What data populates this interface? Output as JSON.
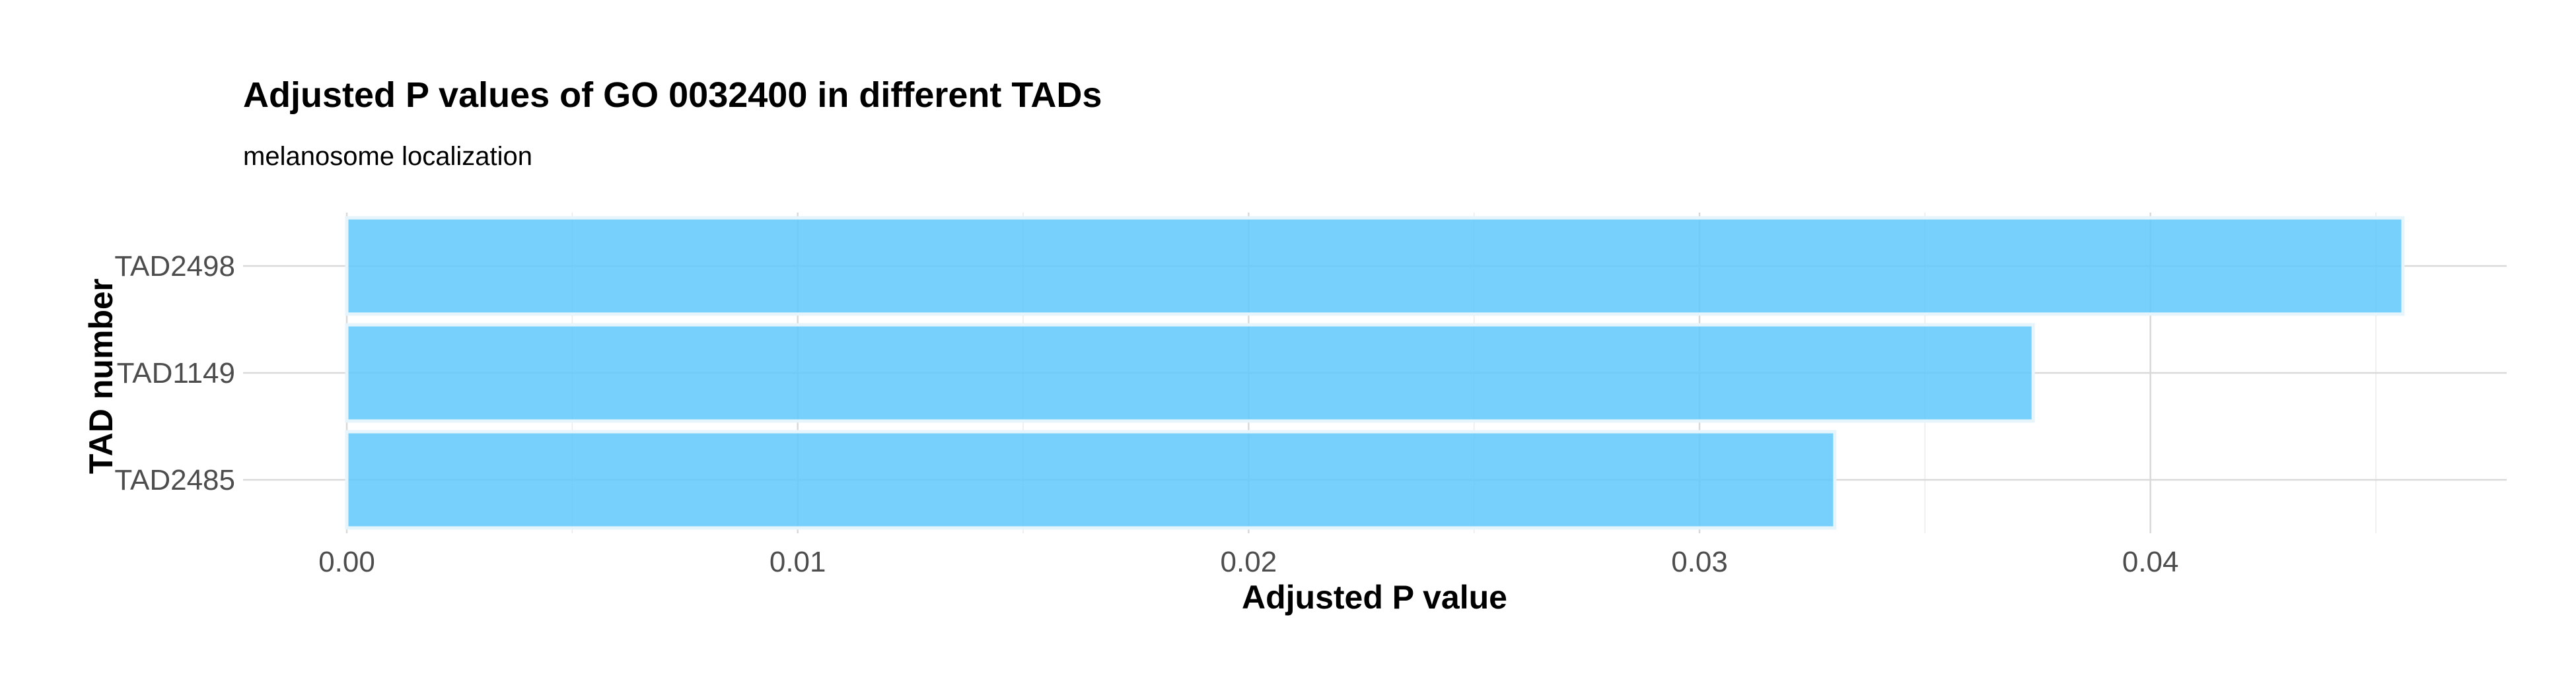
{
  "chart_data": {
    "type": "bar",
    "orientation": "horizontal",
    "title": "Adjusted P values of GO 0032400 in different TADs",
    "subtitle": "melanosome localization",
    "xlabel": "Adjusted P value",
    "ylabel": "TAD number",
    "categories": [
      "TAD2498",
      "TAD1149",
      "TAD2485"
    ],
    "values": [
      0.0456,
      0.0374,
      0.033
    ],
    "xlim": [
      -0.0023,
      0.0479
    ],
    "xticks": [
      0.0,
      0.01,
      0.02,
      0.03,
      0.04
    ],
    "xtick_labels": [
      "0.00",
      "0.01",
      "0.02",
      "0.03",
      "0.04"
    ],
    "bar_color": "#5ec8fa",
    "grid": true
  }
}
